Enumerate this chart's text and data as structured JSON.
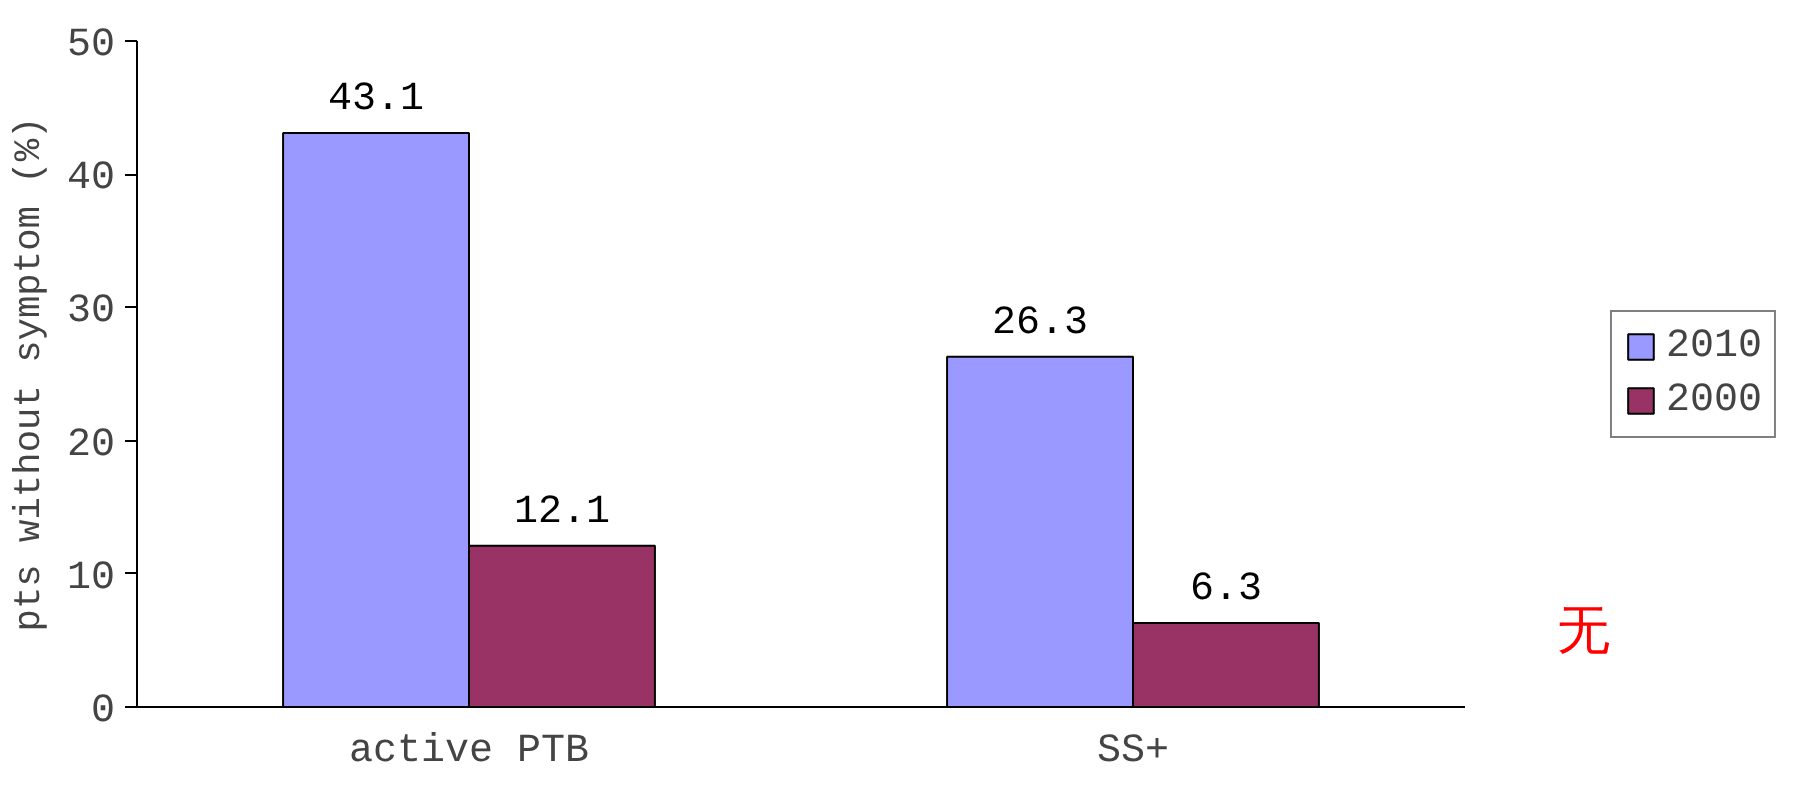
{
  "chart_data": {
    "type": "bar",
    "categories": [
      "active PTB",
      "SS+"
    ],
    "series": [
      {
        "name": "2010",
        "color": "#9999ff",
        "values": [
          43.1,
          26.3
        ]
      },
      {
        "name": "2000",
        "color": "#993366",
        "values": [
          12.1,
          6.3
        ]
      }
    ],
    "ylabel": "pts without symptom (%)",
    "ylim": [
      0,
      50
    ],
    "yticks": [
      0,
      10,
      20,
      30,
      40,
      50
    ],
    "data_labels": true,
    "grid": false,
    "legend": "right",
    "annotations": [
      "无"
    ]
  }
}
